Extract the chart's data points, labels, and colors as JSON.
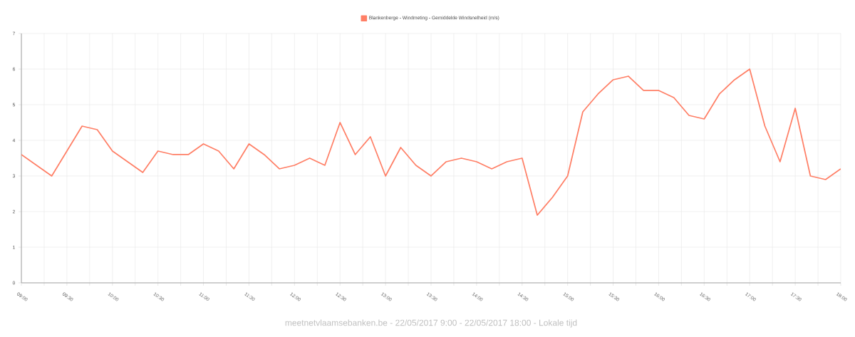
{
  "chart_data": {
    "type": "line",
    "xlabel": "meetnetvlaamsebanken.be - 22/05/2017 9:00 - 22/05/2017 18:00 - Lokale tijd",
    "x": [
      9,
      9.1667,
      9.3333,
      9.5,
      9.6667,
      9.8333,
      10,
      10.1667,
      10.3333,
      10.5,
      10.6667,
      10.8333,
      11,
      11.1667,
      11.3333,
      11.5,
      11.6667,
      11.8333,
      12,
      12.1667,
      12.3333,
      12.5,
      12.6667,
      12.8333,
      13,
      13.1667,
      13.3333,
      13.5,
      13.6667,
      13.8333,
      14,
      14.1667,
      14.3333,
      14.5,
      14.6667,
      14.8333,
      15,
      15.1667,
      15.3333,
      15.5,
      15.6667,
      15.8333,
      16,
      16.1667,
      16.3333,
      16.5,
      16.6667,
      16.8333,
      17,
      17.1667,
      17.3333,
      17.5,
      17.6667,
      17.8333,
      18
    ],
    "series": [
      {
        "name": "Blankenberge - Windmeting - Gemiddelde Windsnelheid (m/s)",
        "color": "#ff7f66",
        "values": [
          3.6,
          3.3,
          3.0,
          3.7,
          4.4,
          4.3,
          3.7,
          3.4,
          3.1,
          3.7,
          3.6,
          3.6,
          3.9,
          3.7,
          3.2,
          3.9,
          3.6,
          3.2,
          3.3,
          3.5,
          3.3,
          4.5,
          3.6,
          4.1,
          3.0,
          3.8,
          3.3,
          3.0,
          3.4,
          3.5,
          3.4,
          3.2,
          3.4,
          3.5,
          1.9,
          2.4,
          3.0,
          4.8,
          5.3,
          5.7,
          5.8,
          5.4,
          5.4,
          5.2,
          4.7,
          4.6,
          5.3,
          5.7,
          6.0,
          4.4,
          3.4,
          4.9,
          3.0,
          2.9,
          3.2
        ]
      }
    ],
    "xlim": [
      9,
      18
    ],
    "ylim": [
      0,
      7
    ],
    "yticks": [
      0,
      1,
      2,
      3,
      4,
      5,
      6,
      7
    ],
    "xticks": [
      {
        "value": 9,
        "label": "09:00"
      },
      {
        "value": 9.25,
        "label": null
      },
      {
        "value": 9.5,
        "label": "09:30"
      },
      {
        "value": 9.75,
        "label": null
      },
      {
        "value": 10,
        "label": "10:00"
      },
      {
        "value": 10.25,
        "label": null
      },
      {
        "value": 10.5,
        "label": "10:30"
      },
      {
        "value": 10.75,
        "label": null
      },
      {
        "value": 11,
        "label": "11:00"
      },
      {
        "value": 11.25,
        "label": null
      },
      {
        "value": 11.5,
        "label": "11:30"
      },
      {
        "value": 11.75,
        "label": null
      },
      {
        "value": 12,
        "label": "12:00"
      },
      {
        "value": 12.25,
        "label": null
      },
      {
        "value": 12.5,
        "label": "12:30"
      },
      {
        "value": 12.75,
        "label": null
      },
      {
        "value": 13,
        "label": "13:00"
      },
      {
        "value": 13.25,
        "label": null
      },
      {
        "value": 13.5,
        "label": "13:30"
      },
      {
        "value": 13.75,
        "label": null
      },
      {
        "value": 14,
        "label": "14:00"
      },
      {
        "value": 14.25,
        "label": null
      },
      {
        "value": 14.5,
        "label": "14:30"
      },
      {
        "value": 14.75,
        "label": null
      },
      {
        "value": 15,
        "label": "15:00"
      },
      {
        "value": 15.25,
        "label": null
      },
      {
        "value": 15.5,
        "label": "15:30"
      },
      {
        "value": 15.75,
        "label": null
      },
      {
        "value": 16,
        "label": "16:00"
      },
      {
        "value": 16.25,
        "label": null
      },
      {
        "value": 16.5,
        "label": "16:30"
      },
      {
        "value": 16.75,
        "label": null
      },
      {
        "value": 17,
        "label": "17:00"
      },
      {
        "value": 17.25,
        "label": null
      },
      {
        "value": 17.5,
        "label": "17:30"
      },
      {
        "value": 17.75,
        "label": null
      },
      {
        "value": 18,
        "label": "18:00"
      }
    ],
    "grid": true,
    "legend": "top",
    "line_style": "solid"
  }
}
